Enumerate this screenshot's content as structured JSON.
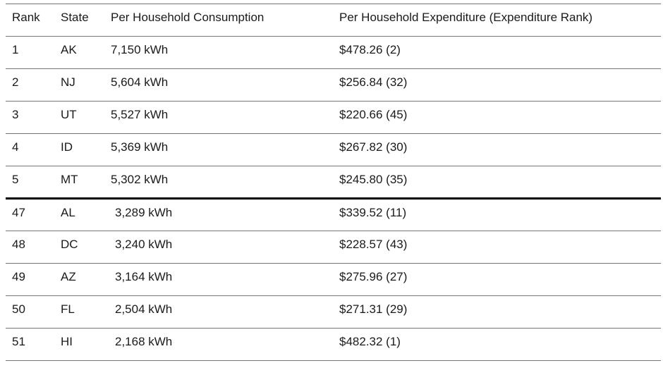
{
  "table": {
    "columns": [
      "Rank",
      "State",
      "Per Household Consumption",
      "Per Household Expenditure (Expenditure Rank)"
    ],
    "rows": [
      {
        "rank": "1",
        "state": "AK",
        "consumption": "7,150 kWh",
        "expenditure": "$478.26 (2)",
        "section": "top"
      },
      {
        "rank": "2",
        "state": "NJ",
        "consumption": "5,604 kWh",
        "expenditure": "$256.84 (32)",
        "section": "top"
      },
      {
        "rank": "3",
        "state": "UT",
        "consumption": "5,527 kWh",
        "expenditure": "$220.66 (45)",
        "section": "top"
      },
      {
        "rank": "4",
        "state": "ID",
        "consumption": "5,369 kWh",
        "expenditure": "$267.82 (30)",
        "section": "top"
      },
      {
        "rank": "5",
        "state": "MT",
        "consumption": "5,302 kWh",
        "expenditure": "$245.80 (35)",
        "section": "top"
      },
      {
        "rank": "47",
        "state": "AL",
        "consumption": "3,289 kWh",
        "expenditure": "$339.52 (11)",
        "section": "bottom"
      },
      {
        "rank": "48",
        "state": "DC",
        "consumption": "3,240 kWh",
        "expenditure": "$228.57 (43)",
        "section": "bottom"
      },
      {
        "rank": "49",
        "state": "AZ",
        "consumption": "3,164 kWh",
        "expenditure": "$275.96 (27)",
        "section": "bottom"
      },
      {
        "rank": "50",
        "state": "FL",
        "consumption": "2,504 kWh",
        "expenditure": "$271.31 (29)",
        "section": "bottom"
      },
      {
        "rank": "51",
        "state": "HI",
        "consumption": "2,168 kWh",
        "expenditure": "$482.32 (1)",
        "section": "bottom"
      }
    ]
  },
  "chart_data": {
    "type": "table",
    "title": "",
    "columns": [
      "Rank",
      "State",
      "Per Household Consumption",
      "Per Household Expenditure (Expenditure Rank)"
    ],
    "rows": [
      {
        "rank": 1,
        "state": "AK",
        "consumption_kwh": 7150,
        "expenditure_usd": 478.26,
        "expenditure_rank": 2
      },
      {
        "rank": 2,
        "state": "NJ",
        "consumption_kwh": 5604,
        "expenditure_usd": 256.84,
        "expenditure_rank": 32
      },
      {
        "rank": 3,
        "state": "UT",
        "consumption_kwh": 5527,
        "expenditure_usd": 220.66,
        "expenditure_rank": 45
      },
      {
        "rank": 4,
        "state": "ID",
        "consumption_kwh": 5369,
        "expenditure_usd": 267.82,
        "expenditure_rank": 30
      },
      {
        "rank": 5,
        "state": "MT",
        "consumption_kwh": 5302,
        "expenditure_usd": 245.8,
        "expenditure_rank": 35
      },
      {
        "rank": 47,
        "state": "AL",
        "consumption_kwh": 3289,
        "expenditure_usd": 339.52,
        "expenditure_rank": 11
      },
      {
        "rank": 48,
        "state": "DC",
        "consumption_kwh": 3240,
        "expenditure_usd": 228.57,
        "expenditure_rank": 43
      },
      {
        "rank": 49,
        "state": "AZ",
        "consumption_kwh": 3164,
        "expenditure_usd": 275.96,
        "expenditure_rank": 27
      },
      {
        "rank": 50,
        "state": "FL",
        "consumption_kwh": 2504,
        "expenditure_usd": 271.31,
        "expenditure_rank": 29
      },
      {
        "rank": 51,
        "state": "HI",
        "consumption_kwh": 2168,
        "expenditure_usd": 482.32,
        "expenditure_rank": 1
      }
    ],
    "layout_hints": {
      "section_break_after_row_index": 4,
      "units": {
        "consumption": "kWh",
        "expenditure": "USD"
      }
    }
  },
  "colors": {
    "background": "#ffffff",
    "text": "#1a1a1a",
    "thin_border": "#757575",
    "thick_border": "#000000"
  }
}
